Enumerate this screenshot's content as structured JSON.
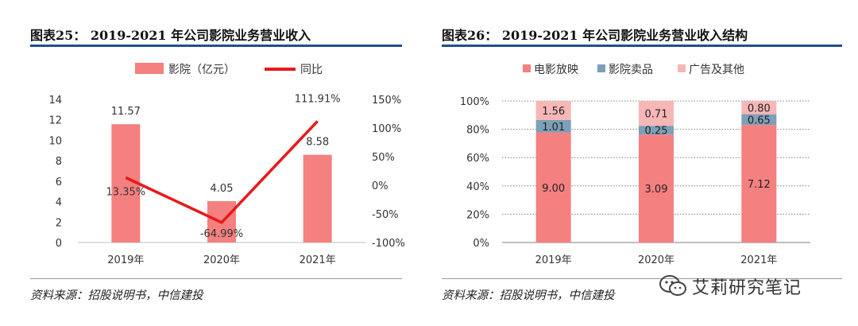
{
  "left": {
    "title": "图表25： 2019-2021 年公司影院业务营业收入",
    "source": "资料来源：招股说明书，中信建投"
  },
  "right": {
    "title": "图表26： 2019-2021 年公司影院业务营业收入结构",
    "source": "资料来源：招股说明书，中信建投"
  },
  "watermark": {
    "text": "艾莉研究笔记",
    "icon": "wechat-icon"
  },
  "chart_data": [
    {
      "type": "bar",
      "categories": [
        "2019年",
        "2020年",
        "2021年"
      ],
      "series": [
        {
          "name": "影院（亿元）",
          "type": "bar",
          "axis": "left",
          "color": "#f4807f",
          "values": [
            11.57,
            4.05,
            8.58
          ],
          "labels": [
            "11.57",
            "4.05",
            "8.58"
          ]
        },
        {
          "name": "同比",
          "type": "line",
          "axis": "right",
          "color": "#e8191c",
          "values": [
            13.35,
            -64.99,
            111.91
          ],
          "labels": [
            "13.35%",
            "-64.99%",
            "111.91%"
          ]
        }
      ],
      "ylim": [
        0,
        14
      ],
      "yticks": [
        "0",
        "2",
        "4",
        "6",
        "8",
        "10",
        "12",
        "14"
      ],
      "y2lim": [
        -100,
        150
      ],
      "y2ticks": [
        "-100%",
        "-50%",
        "0%",
        "50%",
        "100%",
        "150%"
      ],
      "legend": "top",
      "grid": false
    },
    {
      "type": "bar",
      "stacked": "percent",
      "categories": [
        "2019年",
        "2020年",
        "2021年"
      ],
      "series": [
        {
          "name": "电影放映",
          "color": "#f4807f",
          "values": [
            9.0,
            3.09,
            7.12
          ],
          "labels": [
            "9.00",
            "3.09",
            "7.12"
          ]
        },
        {
          "name": "影院卖品",
          "color": "#7e9fb8",
          "values": [
            1.01,
            0.25,
            0.65
          ],
          "labels": [
            "1.01",
            "0.25",
            "0.65"
          ]
        },
        {
          "name": "广告及其他",
          "color": "#f7b7b6",
          "values": [
            1.56,
            0.71,
            0.8
          ],
          "labels": [
            "1.56",
            "0.71",
            "0.80"
          ]
        }
      ],
      "ylim": [
        0,
        100
      ],
      "yticks": [
        "0%",
        "20%",
        "40%",
        "60%",
        "80%",
        "100%"
      ],
      "legend": "top",
      "grid": true
    }
  ]
}
